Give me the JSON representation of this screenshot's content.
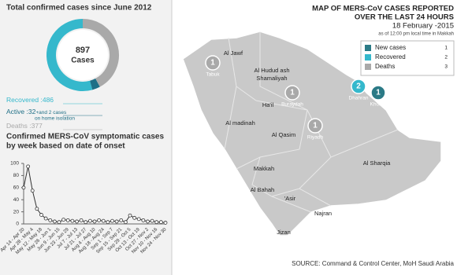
{
  "summary": {
    "title": "Total confirmed cases since June 2012",
    "total": 897,
    "total_label": "Cases",
    "segments": [
      {
        "name": "Recovered :",
        "value": 486,
        "color": "#35b8cc"
      },
      {
        "name": "Active :",
        "value": 32,
        "note": "+and 2 cases",
        "note2": "on home isolation",
        "color": "#1f6f86"
      },
      {
        "name": "Deaths :",
        "value": 377,
        "color": "#a9a9a9"
      }
    ]
  },
  "chart_data": {
    "type": "line",
    "title": [
      "Confirmed MERS-CoV symptomatic cases",
      "by week based on date of onset"
    ],
    "categories": [
      "Apr 14 - Apr 20",
      null,
      "Apr 28 - May 4",
      null,
      "May 12 - May 18",
      null,
      "May 26 - Jun 1",
      null,
      "Jun 9 - Jun 15",
      null,
      "Jun 23 - Jun 29",
      null,
      "Jul 7 - Jul 13",
      null,
      "Jul 21 - Jul 27",
      null,
      "Aug 4 - Aug 10",
      null,
      "Aug 18 - Aug 24",
      null,
      "Sep 1 - Sep 7",
      null,
      "Sep 15 - Sep 21",
      null,
      "Sep 29 - Oct 5",
      null,
      "Oct 13 - Oct 19",
      null,
      "Oct 27 - Nov 2",
      null,
      "Nov 10 - Nov 16",
      null,
      "Nov 24 - Nov 30"
    ],
    "values": [
      60,
      95,
      55,
      25,
      15,
      9,
      6,
      4,
      3,
      7,
      6,
      5,
      4,
      6,
      3,
      5,
      4,
      6,
      5,
      3,
      5,
      4,
      6,
      3,
      14,
      10,
      8,
      6,
      4,
      5,
      3,
      3,
      2
    ],
    "color": "#333333",
    "ylim": [
      0,
      100
    ],
    "yticks": [
      0,
      20,
      40,
      60,
      80,
      100
    ]
  },
  "map": {
    "title": [
      "MAP OF MERS-CoV CASES REPORTED",
      "OVER THE  LAST 24 HOURS",
      "18 February  -2015"
    ],
    "subtitle": "as of 12:00 pm local time in Makkah",
    "legend": [
      {
        "name": "New cases",
        "key": 1,
        "color": "#2b7a86"
      },
      {
        "name": "Recovered",
        "key": 2,
        "color": "#35b8cc"
      },
      {
        "name": "Deaths",
        "key": 3,
        "color": "#a9a9a9"
      }
    ],
    "regions": [
      "Al Jawf",
      "Al Hudud ash",
      "Shamaliyah",
      "Ha'il",
      "Al Qasim",
      "Al madinah",
      "Al Sharqia",
      "Makkah",
      "Al Bahah",
      "'Asir",
      "Najran",
      "Jizan"
    ],
    "cities": [
      {
        "name": "Tabuk",
        "count": 1,
        "color": "#a9a9a9"
      },
      {
        "name": "Buraydah",
        "count": 1,
        "color": "#a9a9a9"
      },
      {
        "name": "Riyadh",
        "count": 1,
        "color": "#a9a9a9"
      },
      {
        "name": "Dhahran",
        "count": 2,
        "color": "#35b8cc"
      },
      {
        "name": "Khobar",
        "count": 1,
        "color": "#2b7a86"
      }
    ],
    "source": "SOURCE: Command & Control Center, MoH Saudi Arabia"
  }
}
